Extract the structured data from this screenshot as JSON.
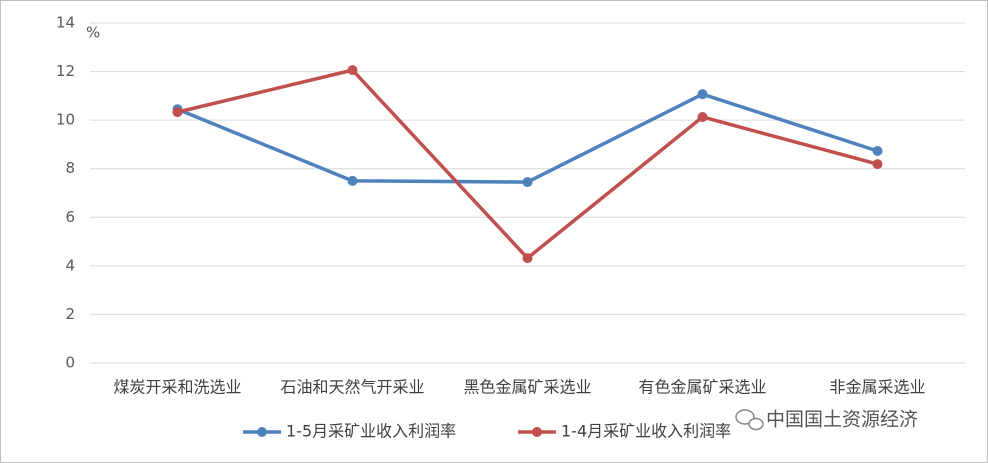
{
  "chart_data": {
    "type": "line",
    "y_unit": "%",
    "categories": [
      "煤炭开采和洗选业",
      "石油和天然气开采业",
      "黑色金属矿采选业",
      "有色金属矿采选业",
      "非金属采选业"
    ],
    "series": [
      {
        "name": "1-5月采矿业收入利润率",
        "color": "#4f81bd",
        "values": [
          10.45,
          7.5,
          7.45,
          11.07,
          8.73
        ]
      },
      {
        "name": "1-4月采矿业收入利润率",
        "color": "#c0504d",
        "values": [
          10.33,
          12.06,
          4.32,
          10.13,
          8.19
        ]
      }
    ],
    "ylim": [
      0,
      14
    ],
    "yticks": [
      0,
      2,
      4,
      6,
      8,
      10,
      12,
      14
    ],
    "grid": true,
    "legend": "bottom",
    "watermark": "中国国土资源经济"
  }
}
